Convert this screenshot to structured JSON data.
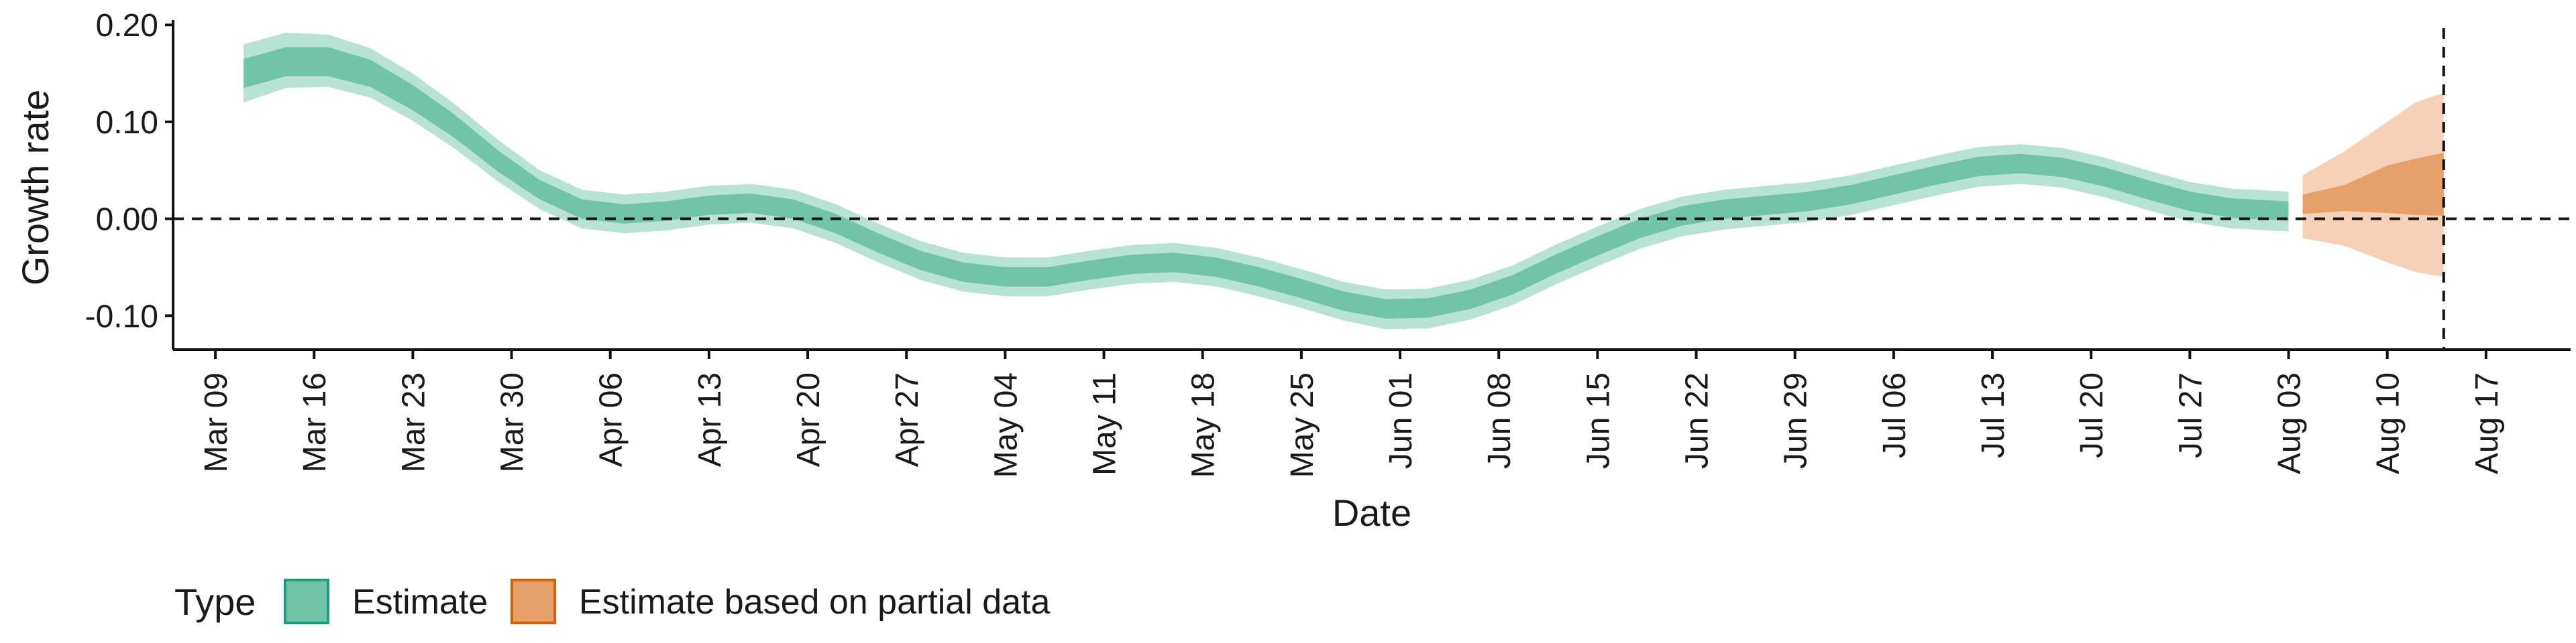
{
  "chart_data": {
    "type": "area",
    "xlabel": "Date",
    "ylabel": "Growth rate",
    "x_axis": {
      "type": "date",
      "range": [
        "2020-03-06",
        "2020-08-23"
      ],
      "tick_dates": [
        "2020-03-09",
        "2020-03-16",
        "2020-03-23",
        "2020-03-30",
        "2020-04-06",
        "2020-04-13",
        "2020-04-20",
        "2020-04-27",
        "2020-05-04",
        "2020-05-11",
        "2020-05-18",
        "2020-05-25",
        "2020-06-01",
        "2020-06-08",
        "2020-06-15",
        "2020-06-22",
        "2020-06-29",
        "2020-07-06",
        "2020-07-13",
        "2020-07-20",
        "2020-07-27",
        "2020-08-03",
        "2020-08-10",
        "2020-08-17"
      ],
      "tick_labels": [
        "Mar 09",
        "Mar 16",
        "Mar 23",
        "Mar 30",
        "Apr 06",
        "Apr 13",
        "Apr 20",
        "Apr 27",
        "May 04",
        "May 11",
        "May 18",
        "May 25",
        "Jun 01",
        "Jun 08",
        "Jun 15",
        "Jun 22",
        "Jun 29",
        "Jul 06",
        "Jul 13",
        "Jul 20",
        "Jul 27",
        "Aug 03",
        "Aug 10",
        "Aug 17"
      ]
    },
    "y_axis": {
      "range": [
        -0.135,
        0.205
      ],
      "ticks": [
        -0.1,
        0.0,
        0.1,
        0.2
      ],
      "tick_labels": [
        "-0.10",
        "0.00",
        "0.10",
        "0.20"
      ]
    },
    "reference_lines": {
      "horizontal_y": 0.0,
      "vertical_date": "2020-08-14"
    },
    "legend": {
      "title": "Type",
      "position": "bottom",
      "items": [
        {
          "label": "Estimate",
          "fill": "#70c4a7",
          "stroke": "#1b9e77"
        },
        {
          "label": "Estimate based on partial data",
          "fill": "#e8a06a",
          "stroke": "#d95f02"
        }
      ]
    },
    "series": [
      {
        "name": "Estimate",
        "color_inner": "#70c4a7",
        "color_outer": "#b8e2d3",
        "points": [
          {
            "date": "2020-03-11",
            "y": 0.15,
            "lo50": 0.135,
            "hi50": 0.165,
            "lo90": 0.12,
            "hi90": 0.18
          },
          {
            "date": "2020-03-14",
            "y": 0.162,
            "lo50": 0.147,
            "hi50": 0.177,
            "lo90": 0.135,
            "hi90": 0.192
          },
          {
            "date": "2020-03-17",
            "y": 0.162,
            "lo50": 0.147,
            "hi50": 0.177,
            "lo90": 0.136,
            "hi90": 0.19
          },
          {
            "date": "2020-03-20",
            "y": 0.15,
            "lo50": 0.136,
            "hi50": 0.164,
            "lo90": 0.125,
            "hi90": 0.176
          },
          {
            "date": "2020-03-23",
            "y": 0.125,
            "lo50": 0.112,
            "hi50": 0.138,
            "lo90": 0.101,
            "hi90": 0.15
          },
          {
            "date": "2020-03-26",
            "y": 0.095,
            "lo50": 0.083,
            "hi50": 0.107,
            "lo90": 0.072,
            "hi90": 0.118
          },
          {
            "date": "2020-03-29",
            "y": 0.06,
            "lo50": 0.049,
            "hi50": 0.071,
            "lo90": 0.039,
            "hi90": 0.082
          },
          {
            "date": "2020-04-01",
            "y": 0.03,
            "lo50": 0.02,
            "hi50": 0.04,
            "lo90": 0.01,
            "hi90": 0.05
          },
          {
            "date": "2020-04-04",
            "y": 0.01,
            "lo50": 0.0,
            "hi50": 0.02,
            "lo90": -0.01,
            "hi90": 0.03
          },
          {
            "date": "2020-04-07",
            "y": 0.005,
            "lo50": -0.005,
            "hi50": 0.015,
            "lo90": -0.015,
            "hi90": 0.025
          },
          {
            "date": "2020-04-10",
            "y": 0.008,
            "lo50": -0.002,
            "hi50": 0.018,
            "lo90": -0.012,
            "hi90": 0.028
          },
          {
            "date": "2020-04-13",
            "y": 0.014,
            "lo50": 0.004,
            "hi50": 0.024,
            "lo90": -0.006,
            "hi90": 0.034
          },
          {
            "date": "2020-04-16",
            "y": 0.016,
            "lo50": 0.006,
            "hi50": 0.026,
            "lo90": -0.004,
            "hi90": 0.036
          },
          {
            "date": "2020-04-19",
            "y": 0.01,
            "lo50": 0.0,
            "hi50": 0.02,
            "lo90": -0.01,
            "hi90": 0.03
          },
          {
            "date": "2020-04-22",
            "y": -0.005,
            "lo50": -0.015,
            "hi50": 0.005,
            "lo90": -0.025,
            "hi90": 0.015
          },
          {
            "date": "2020-04-25",
            "y": -0.025,
            "lo50": -0.035,
            "hi50": -0.015,
            "lo90": -0.045,
            "hi90": -0.005
          },
          {
            "date": "2020-04-28",
            "y": -0.043,
            "lo50": -0.053,
            "hi50": -0.033,
            "lo90": -0.063,
            "hi90": -0.023
          },
          {
            "date": "2020-05-01",
            "y": -0.055,
            "lo50": -0.065,
            "hi50": -0.045,
            "lo90": -0.075,
            "hi90": -0.035
          },
          {
            "date": "2020-05-04",
            "y": -0.06,
            "lo50": -0.07,
            "hi50": -0.05,
            "lo90": -0.08,
            "hi90": -0.04
          },
          {
            "date": "2020-05-07",
            "y": -0.06,
            "lo50": -0.07,
            "hi50": -0.05,
            "lo90": -0.08,
            "hi90": -0.04
          },
          {
            "date": "2020-05-10",
            "y": -0.053,
            "lo50": -0.063,
            "hi50": -0.043,
            "lo90": -0.073,
            "hi90": -0.033
          },
          {
            "date": "2020-05-13",
            "y": -0.047,
            "lo50": -0.057,
            "hi50": -0.037,
            "lo90": -0.067,
            "hi90": -0.027
          },
          {
            "date": "2020-05-16",
            "y": -0.045,
            "lo50": -0.055,
            "hi50": -0.035,
            "lo90": -0.065,
            "hi90": -0.025
          },
          {
            "date": "2020-05-19",
            "y": -0.05,
            "lo50": -0.06,
            "hi50": -0.04,
            "lo90": -0.07,
            "hi90": -0.03
          },
          {
            "date": "2020-05-22",
            "y": -0.06,
            "lo50": -0.07,
            "hi50": -0.05,
            "lo90": -0.08,
            "hi90": -0.04
          },
          {
            "date": "2020-05-25",
            "y": -0.072,
            "lo50": -0.082,
            "hi50": -0.062,
            "lo90": -0.092,
            "hi90": -0.052
          },
          {
            "date": "2020-05-28",
            "y": -0.085,
            "lo50": -0.095,
            "hi50": -0.075,
            "lo90": -0.105,
            "hi90": -0.065
          },
          {
            "date": "2020-05-31",
            "y": -0.093,
            "lo50": -0.103,
            "hi50": -0.083,
            "lo90": -0.114,
            "hi90": -0.073
          },
          {
            "date": "2020-06-03",
            "y": -0.092,
            "lo50": -0.102,
            "hi50": -0.082,
            "lo90": -0.113,
            "hi90": -0.072
          },
          {
            "date": "2020-06-06",
            "y": -0.083,
            "lo50": -0.093,
            "hi50": -0.073,
            "lo90": -0.104,
            "hi90": -0.063
          },
          {
            "date": "2020-06-09",
            "y": -0.068,
            "lo50": -0.078,
            "hi50": -0.058,
            "lo90": -0.089,
            "hi90": -0.048
          },
          {
            "date": "2020-06-12",
            "y": -0.047,
            "lo50": -0.057,
            "hi50": -0.037,
            "lo90": -0.068,
            "hi90": -0.027
          },
          {
            "date": "2020-06-15",
            "y": -0.028,
            "lo50": -0.038,
            "hi50": -0.018,
            "lo90": -0.049,
            "hi90": -0.008
          },
          {
            "date": "2020-06-18",
            "y": -0.01,
            "lo50": -0.02,
            "hi50": 0.0,
            "lo90": -0.031,
            "hi90": 0.01
          },
          {
            "date": "2020-06-21",
            "y": 0.003,
            "lo50": -0.007,
            "hi50": 0.013,
            "lo90": -0.018,
            "hi90": 0.023
          },
          {
            "date": "2020-06-24",
            "y": 0.01,
            "lo50": 0.0,
            "hi50": 0.02,
            "lo90": -0.011,
            "hi90": 0.03
          },
          {
            "date": "2020-06-27",
            "y": 0.014,
            "lo50": 0.004,
            "hi50": 0.024,
            "lo90": -0.007,
            "hi90": 0.034
          },
          {
            "date": "2020-06-30",
            "y": 0.018,
            "lo50": 0.008,
            "hi50": 0.028,
            "lo90": -0.003,
            "hi90": 0.038
          },
          {
            "date": "2020-07-03",
            "y": 0.025,
            "lo50": 0.015,
            "hi50": 0.035,
            "lo90": 0.004,
            "hi90": 0.045
          },
          {
            "date": "2020-07-06",
            "y": 0.035,
            "lo50": 0.025,
            "hi50": 0.045,
            "lo90": 0.014,
            "hi90": 0.055
          },
          {
            "date": "2020-07-09",
            "y": 0.045,
            "lo50": 0.035,
            "hi50": 0.055,
            "lo90": 0.024,
            "hi90": 0.065
          },
          {
            "date": "2020-07-12",
            "y": 0.054,
            "lo50": 0.044,
            "hi50": 0.064,
            "lo90": 0.033,
            "hi90": 0.074
          },
          {
            "date": "2020-07-15",
            "y": 0.057,
            "lo50": 0.047,
            "hi50": 0.067,
            "lo90": 0.036,
            "hi90": 0.077
          },
          {
            "date": "2020-07-18",
            "y": 0.053,
            "lo50": 0.043,
            "hi50": 0.063,
            "lo90": 0.032,
            "hi90": 0.073
          },
          {
            "date": "2020-07-21",
            "y": 0.043,
            "lo50": 0.033,
            "hi50": 0.053,
            "lo90": 0.022,
            "hi90": 0.063
          },
          {
            "date": "2020-07-24",
            "y": 0.03,
            "lo50": 0.02,
            "hi50": 0.04,
            "lo90": 0.009,
            "hi90": 0.05
          },
          {
            "date": "2020-07-27",
            "y": 0.018,
            "lo50": 0.008,
            "hi50": 0.028,
            "lo90": -0.003,
            "hi90": 0.038
          },
          {
            "date": "2020-07-30",
            "y": 0.011,
            "lo50": 0.001,
            "hi50": 0.021,
            "lo90": -0.01,
            "hi90": 0.031
          },
          {
            "date": "2020-08-03",
            "y": 0.008,
            "lo50": -0.002,
            "hi50": 0.018,
            "lo90": -0.013,
            "hi90": 0.028
          }
        ]
      },
      {
        "name": "Estimate based on partial data",
        "color_inner": "#e8a06a",
        "color_outer": "#f5d2b7",
        "points": [
          {
            "date": "2020-08-04",
            "y": 0.02,
            "lo50": 0.005,
            "hi50": 0.025,
            "lo90": -0.02,
            "hi90": 0.045
          },
          {
            "date": "2020-08-07",
            "y": 0.028,
            "lo50": 0.008,
            "hi50": 0.035,
            "lo90": -0.028,
            "hi90": 0.07
          },
          {
            "date": "2020-08-10",
            "y": 0.04,
            "lo50": 0.006,
            "hi50": 0.055,
            "lo90": -0.045,
            "hi90": 0.1
          },
          {
            "date": "2020-08-12",
            "y": 0.045,
            "lo50": 0.004,
            "hi50": 0.062,
            "lo90": -0.055,
            "hi90": 0.12
          },
          {
            "date": "2020-08-14",
            "y": 0.048,
            "lo50": 0.003,
            "hi50": 0.068,
            "lo90": -0.06,
            "hi90": 0.13
          }
        ]
      }
    ]
  }
}
